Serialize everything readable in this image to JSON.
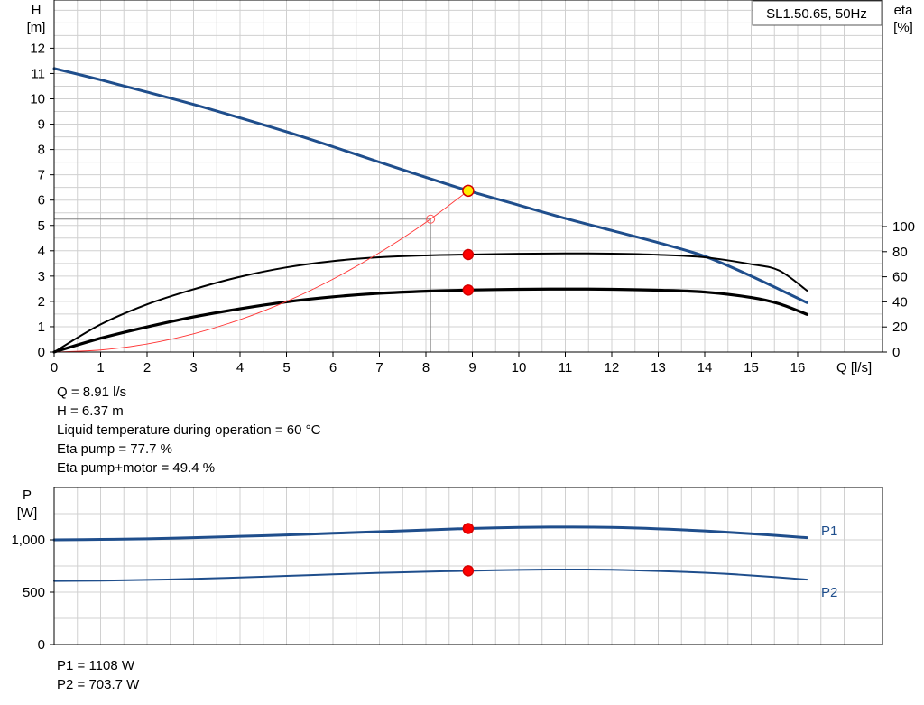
{
  "chart_data": [
    {
      "type": "line",
      "name": "pump-curves",
      "title": "SL1.50.65, 50Hz",
      "xlabel": "Q [l/s]",
      "ylabel_left_top": "H",
      "ylabel_left_unit": "[m]",
      "ylabel_right_top": "eta",
      "ylabel_right_unit": "[%]",
      "xlim": [
        0,
        17.1
      ],
      "ylim_left": [
        0,
        13.9
      ],
      "ylim_right": [
        0,
        100
      ],
      "x_ticks": [
        0,
        1,
        2,
        3,
        4,
        5,
        6,
        7,
        8,
        9,
        10,
        11,
        12,
        13,
        14,
        15,
        16
      ],
      "y_left_ticks": [
        0,
        1,
        2,
        3,
        4,
        5,
        6,
        7,
        8,
        9,
        10,
        11,
        12
      ],
      "y_right_ticks": [
        0,
        20,
        40,
        60,
        80,
        100
      ],
      "grid": true,
      "series": [
        {
          "key": "head",
          "axis": "left",
          "color": "#1f4e8c",
          "x": [
            0,
            1,
            2,
            3,
            4,
            5,
            6,
            7,
            8,
            8.91,
            10,
            11,
            12,
            13,
            14,
            15,
            16.2
          ],
          "y": [
            11.2,
            10.75,
            10.27,
            9.78,
            9.25,
            8.7,
            8.11,
            7.5,
            6.9,
            6.37,
            5.8,
            5.28,
            4.8,
            4.32,
            3.78,
            3.0,
            1.95
          ]
        },
        {
          "key": "eta_pump",
          "axis": "right",
          "color": "#000000",
          "x": [
            0,
            1,
            2,
            3,
            4,
            5,
            6,
            7,
            8,
            8.91,
            10,
            11,
            12,
            13,
            14,
            15,
            15.6,
            16.2
          ],
          "y": [
            0,
            22,
            38,
            50,
            60,
            67.5,
            72.5,
            75.5,
            77,
            77.7,
            78.3,
            78.6,
            78.4,
            77.5,
            75.5,
            70,
            65,
            49
          ]
        },
        {
          "key": "eta_total",
          "axis": "right",
          "color": "#000000",
          "x": [
            0,
            1,
            2,
            3,
            4,
            5,
            6,
            7,
            8,
            8.91,
            10,
            11,
            12,
            13,
            14,
            15,
            15.6,
            16.2
          ],
          "y": [
            0,
            11,
            20,
            28,
            34.5,
            40,
            44,
            46.8,
            48.5,
            49.4,
            50,
            50.2,
            50,
            49.3,
            47.8,
            43.5,
            38.5,
            30
          ]
        },
        {
          "key": "system",
          "axis": "left",
          "color": "#ff3333",
          "x": [
            0,
            1,
            2,
            3,
            4,
            5,
            6,
            7,
            8,
            8.91
          ],
          "y": [
            0,
            0.08,
            0.32,
            0.72,
            1.28,
            2.0,
            2.88,
            3.92,
            5.12,
            6.37
          ]
        }
      ],
      "markers": [
        {
          "key": "duty-point-head",
          "axis": "left",
          "x": 8.91,
          "y": 6.37,
          "fill": "#ffee00",
          "stroke": "#d40000"
        },
        {
          "key": "duty-point-eta-pump",
          "axis": "right",
          "x": 8.91,
          "y": 77.7,
          "fill": "#ff0000",
          "stroke": "#d40000"
        },
        {
          "key": "duty-point-eta-total",
          "axis": "right",
          "x": 8.91,
          "y": 49.4,
          "fill": "#ff0000",
          "stroke": "#d40000"
        },
        {
          "key": "system-point",
          "axis": "left",
          "x": 8.1,
          "y": 5.25,
          "fill": "none",
          "stroke": "#ff5555"
        }
      ],
      "guide_lines": {
        "x": 8.1,
        "y": 5.25
      }
    },
    {
      "type": "line",
      "name": "power-curves",
      "ylabel_top": "P",
      "ylabel_unit": "[W]",
      "xlim": [
        0,
        17.1
      ],
      "ylim": [
        0,
        1500
      ],
      "y_ticks": [
        0,
        500,
        1000
      ],
      "y_tick_labels": [
        "0",
        "500",
        "1,000"
      ],
      "grid": true,
      "series": [
        {
          "name": "P1",
          "color": "#1f4e8c",
          "x": [
            0,
            1,
            2,
            3,
            4,
            5,
            6,
            7,
            8,
            8.91,
            10,
            11,
            12,
            13,
            14,
            15,
            16.2
          ],
          "y": [
            1000,
            1004,
            1010,
            1020,
            1033,
            1046,
            1062,
            1078,
            1094,
            1108,
            1118,
            1122,
            1118,
            1105,
            1085,
            1058,
            1020
          ]
        },
        {
          "name": "P2",
          "color": "#1f4e8c",
          "x": [
            0,
            1,
            2,
            3,
            4,
            5,
            6,
            7,
            8,
            8.91,
            10,
            11,
            12,
            13,
            14,
            15,
            16.2
          ],
          "y": [
            607,
            610,
            617,
            627,
            640,
            655,
            670,
            684,
            695,
            703.7,
            712,
            716,
            713,
            702,
            685,
            660,
            620
          ]
        }
      ],
      "markers": [
        {
          "key": "duty-point-p1",
          "x": 8.91,
          "y": 1108
        },
        {
          "key": "duty-point-p2",
          "x": 8.91,
          "y": 703.7
        }
      ]
    }
  ],
  "info": {
    "q": "Q = 8.91 l/s",
    "h": "H = 6.37 m",
    "temp": "Liquid temperature during operation = 60 °C",
    "eta_pump": "Eta pump = 77.7 %",
    "eta_total": "Eta pump+motor = 49.4 %",
    "p1": "P1 = 1108 W",
    "p2": "P2 = 703.7 W"
  }
}
